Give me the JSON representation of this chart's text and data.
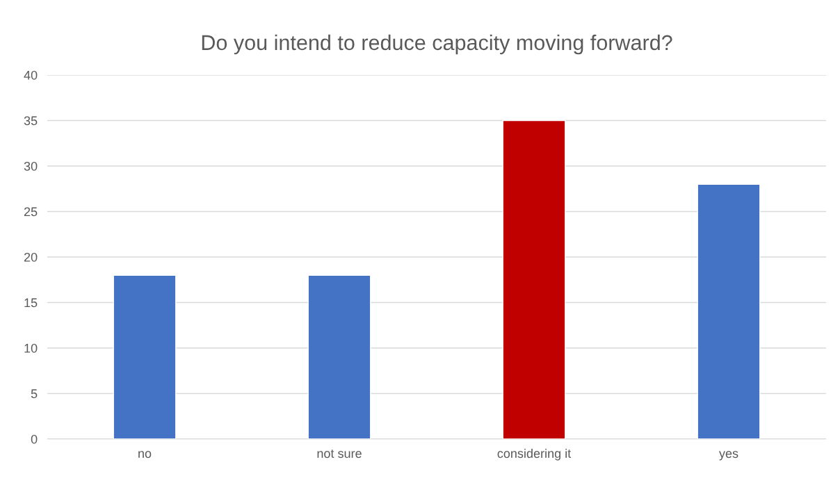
{
  "chart_data": {
    "type": "bar",
    "title": "Do you intend to reduce capacity moving forward?",
    "categories": [
      "no",
      "not sure",
      "considering it",
      "yes"
    ],
    "values": [
      18,
      18,
      35,
      28
    ],
    "colors": [
      "#4472c4",
      "#4472c4",
      "#c00000",
      "#4472c4"
    ],
    "ylim": [
      0,
      40
    ],
    "yticks": [
      0,
      5,
      10,
      15,
      20,
      25,
      30,
      35,
      40
    ],
    "grid": "y",
    "legend": false
  }
}
